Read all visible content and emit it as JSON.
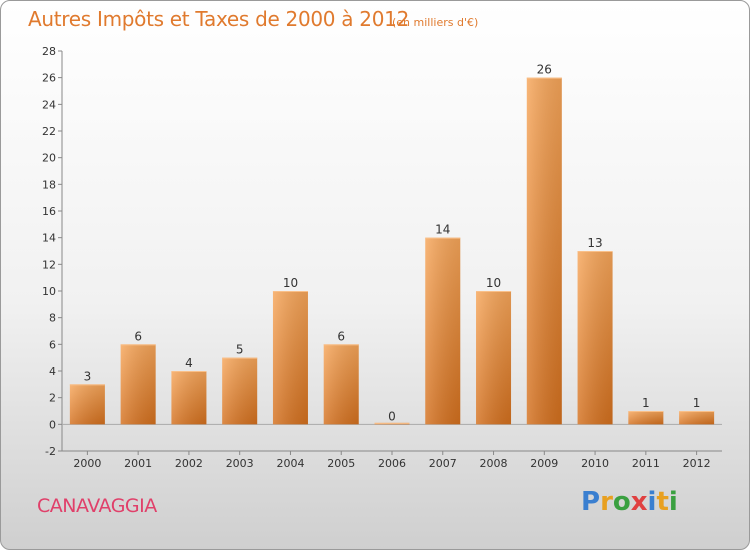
{
  "title": "Autres Impôts et Taxes de 2000 à 2012",
  "subtitle": "(en milliers d'€)",
  "commune": "CANAVAGGIA",
  "logo": {
    "text": "Proxiti",
    "letters": [
      {
        "char": "P",
        "color": "#3a7fd0"
      },
      {
        "char": "r",
        "color": "#e8a020"
      },
      {
        "char": "o",
        "color": "#3aa040"
      },
      {
        "char": "x",
        "color": "#e04040"
      },
      {
        "char": "i",
        "color": "#3a7fd0"
      },
      {
        "char": "t",
        "color": "#e8a020"
      },
      {
        "char": "i",
        "color": "#3aa040"
      }
    ]
  },
  "chart_data": {
    "type": "bar",
    "title": "Autres Impôts et Taxes de 2000 à 2012",
    "subtitle": "(en milliers d'€)",
    "categories": [
      "2000",
      "2001",
      "2002",
      "2003",
      "2004",
      "2005",
      "2006",
      "2007",
      "2008",
      "2009",
      "2010",
      "2011",
      "2012"
    ],
    "values": [
      3,
      6,
      4,
      5,
      10,
      6,
      0,
      14,
      10,
      26,
      13,
      1,
      1
    ],
    "ylim": [
      -2,
      28
    ],
    "yticks": [
      -2,
      0,
      2,
      4,
      6,
      8,
      10,
      12,
      14,
      16,
      18,
      20,
      22,
      24,
      26,
      28
    ],
    "grid": false,
    "bar_color": "#f0903a",
    "xlabel": "",
    "ylabel": ""
  }
}
